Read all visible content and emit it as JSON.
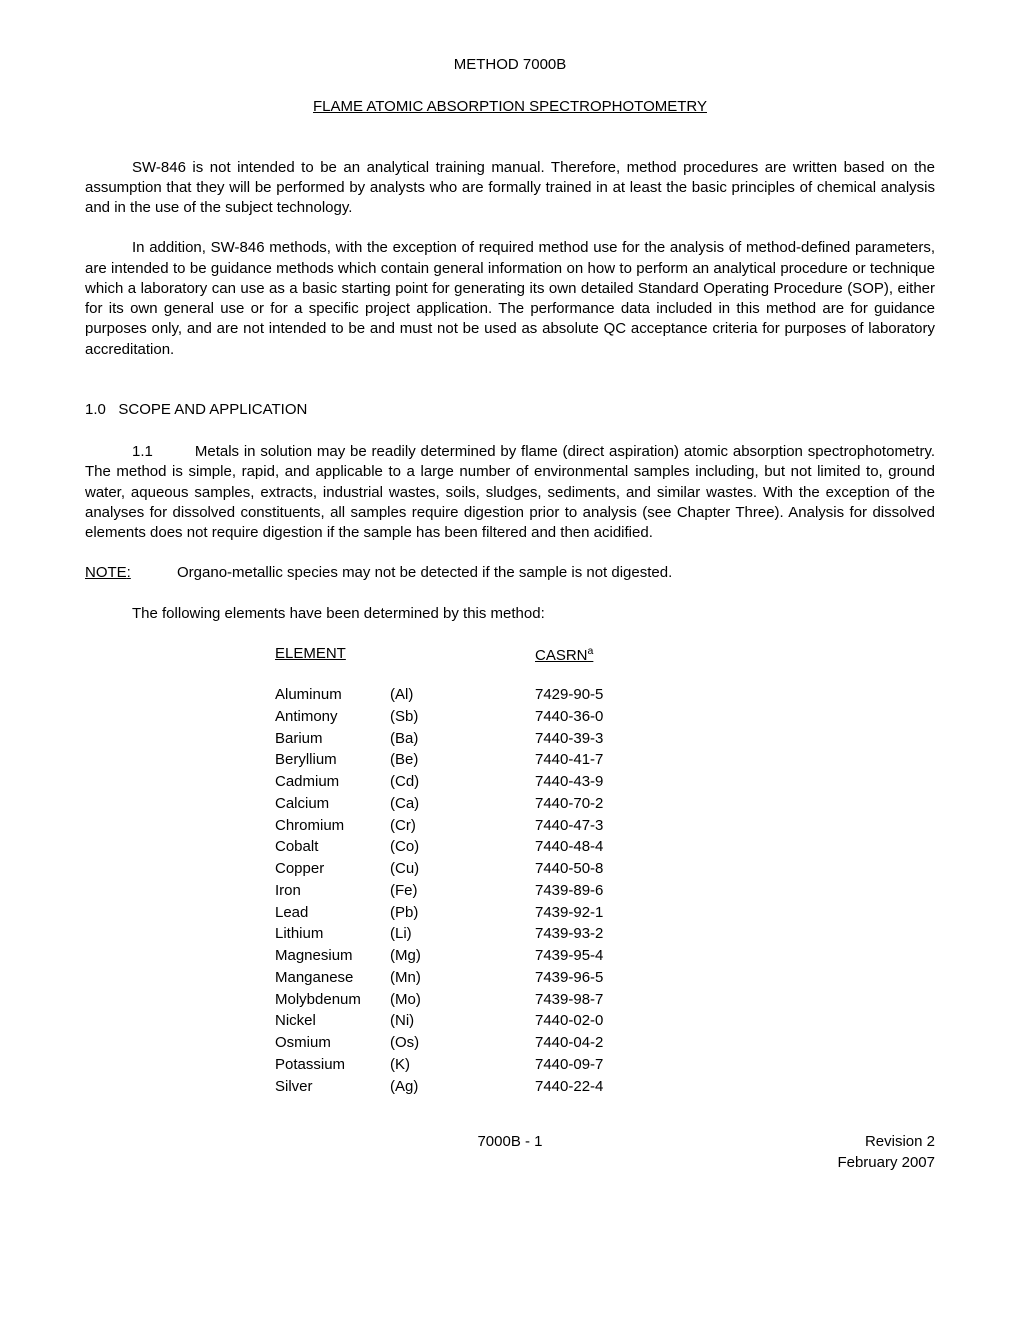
{
  "title": "METHOD 7000B",
  "subtitle": "FLAME ATOMIC ABSORPTION SPECTROPHOTOMETRY",
  "para1": "SW-846 is not intended to be an analytical training manual.  Therefore, method procedures are written based on the assumption that they will be performed by analysts who are formally trained in at least the basic principles of chemical analysis and in the use of the subject technology.",
  "para2": "In addition, SW-846 methods, with the exception of required method use for the analysis of method-defined parameters, are intended to be guidance methods which contain general information on how to perform an analytical procedure or technique which a laboratory can use as a basic starting point for generating its own detailed Standard Operating Procedure (SOP), either for its own general use or for a specific project application.  The performance data included in this method are for guidance purposes only, and are not intended to be and must not be used as absolute QC acceptance criteria for purposes of laboratory accreditation.",
  "section1_number": "1.0",
  "section1_title": "SCOPE AND APPLICATION",
  "section1_1_number": "1.1",
  "section1_1_text": "Metals in solution may be readily determined by flame (direct aspiration) atomic absorption spectrophotometry.  The method is simple, rapid, and applicable to a large number of environmental samples including, but not limited to, ground water, aqueous samples, extracts, industrial wastes, soils, sludges, sediments, and similar wastes.  With the exception of the analyses for dissolved constituents, all samples require digestion prior to analysis (see Chapter Three).  Analysis for dissolved elements does not require digestion if the sample has been filtered and then acidified.",
  "note_label": "NOTE",
  "note_text": "Organo-metallic species may not be detected if the sample is not digested.",
  "table_intro": "The following elements have been determined by this method:",
  "table_header_element": "ELEMENT",
  "table_header_casrn": "CASRN",
  "table_header_casrn_sup": "a",
  "elements": [
    {
      "name": "Aluminum",
      "symbol": "(Al)",
      "casrn": "7429-90-5"
    },
    {
      "name": "Antimony",
      "symbol": "(Sb)",
      "casrn": "7440-36-0"
    },
    {
      "name": "Barium",
      "symbol": "(Ba)",
      "casrn": "7440-39-3"
    },
    {
      "name": "Beryllium",
      "symbol": "(Be)",
      "casrn": "7440-41-7"
    },
    {
      "name": "Cadmium",
      "symbol": "(Cd)",
      "casrn": "7440-43-9"
    },
    {
      "name": "Calcium",
      "symbol": "(Ca)",
      "casrn": "7440-70-2"
    },
    {
      "name": "Chromium",
      "symbol": "(Cr)",
      "casrn": "7440-47-3"
    },
    {
      "name": "Cobalt",
      "symbol": "(Co)",
      "casrn": "7440-48-4"
    },
    {
      "name": "Copper",
      "symbol": "(Cu)",
      "casrn": "7440-50-8"
    },
    {
      "name": "Iron",
      "symbol": "(Fe)",
      "casrn": "7439-89-6"
    },
    {
      "name": "Lead",
      "symbol": "(Pb)",
      "casrn": "7439-92-1"
    },
    {
      "name": "Lithium",
      "symbol": "(Li)",
      "casrn": "7439-93-2"
    },
    {
      "name": "Magnesium",
      "symbol": "(Mg)",
      "casrn": "7439-95-4"
    },
    {
      "name": "Manganese",
      "symbol": "(Mn)",
      "casrn": "7439-96-5"
    },
    {
      "name": "Molybdenum",
      "symbol": "(Mo)",
      "casrn": "7439-98-7"
    },
    {
      "name": "Nickel",
      "symbol": "(Ni)",
      "casrn": "7440-02-0"
    },
    {
      "name": "Osmium",
      "symbol": "(Os)",
      "casrn": "7440-04-2"
    },
    {
      "name": "Potassium",
      "symbol": "(K)",
      "casrn": "7440-09-7"
    },
    {
      "name": "Silver",
      "symbol": "(Ag)",
      "casrn": "7440-22-4"
    }
  ],
  "footer_center": "7000B - 1",
  "footer_right_line1": "Revision 2",
  "footer_right_line2": "February 2007"
}
